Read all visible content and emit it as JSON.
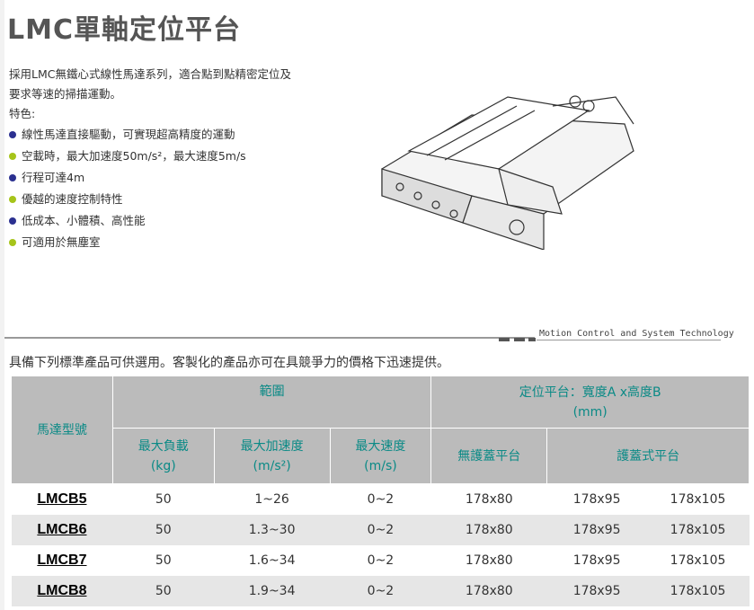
{
  "title": "LMC單軸定位平台",
  "intro": [
    "採用LMC無鐵心式線性馬達系列，適合點到點精密定位及",
    "要求等速的掃描運動。",
    "特色:"
  ],
  "features": [
    {
      "text": "線性馬達直接驅動，可實現超高精度的運動",
      "color": "#2b3090"
    },
    {
      "text": "空載時，最大加速度50m/s²，最大速度5m/s",
      "color": "#a6c41a"
    },
    {
      "text": "行程可達4m",
      "color": "#2b3090"
    },
    {
      "text": "優越的速度控制特性",
      "color": "#a6c41a"
    },
    {
      "text": "低成本、小體積、高性能",
      "color": "#2b3090"
    },
    {
      "text": "可適用於無塵室",
      "color": "#a6c41a"
    }
  ],
  "banner": "Motion Control and System Technology",
  "availability": "具備下列標準產品可供選用。客製化的產品亦可在具競爭力的價格下迅速提供。",
  "table": {
    "h_model": "馬達型號",
    "h_range": "範圍",
    "h_platform": "定位平台：寬度A x高度B",
    "h_platform_unit": "(mm)",
    "h_load": "最大負載",
    "h_load_unit": "(kg)",
    "h_acc": "最大加速度",
    "h_acc_unit": "(m/s²)",
    "h_speed": "最大速度",
    "h_speed_unit": "(m/s)",
    "h_nocover": "無護蓋平台",
    "h_cover": "護蓋式平台",
    "rows": [
      [
        "LMCB5",
        "50",
        "1~26",
        "0~2",
        "178x80",
        "178x95",
        "178x105"
      ],
      [
        "LMCB6",
        "50",
        "1.3~30",
        "0~2",
        "178x80",
        "178x95",
        "178x105"
      ],
      [
        "LMCB7",
        "50",
        "1.6~34",
        "0~2",
        "178x80",
        "178x95",
        "178x105"
      ],
      [
        "LMCB8",
        "50",
        "1.9~34",
        "0~2",
        "178x80",
        "178x95",
        "178x105"
      ]
    ]
  }
}
